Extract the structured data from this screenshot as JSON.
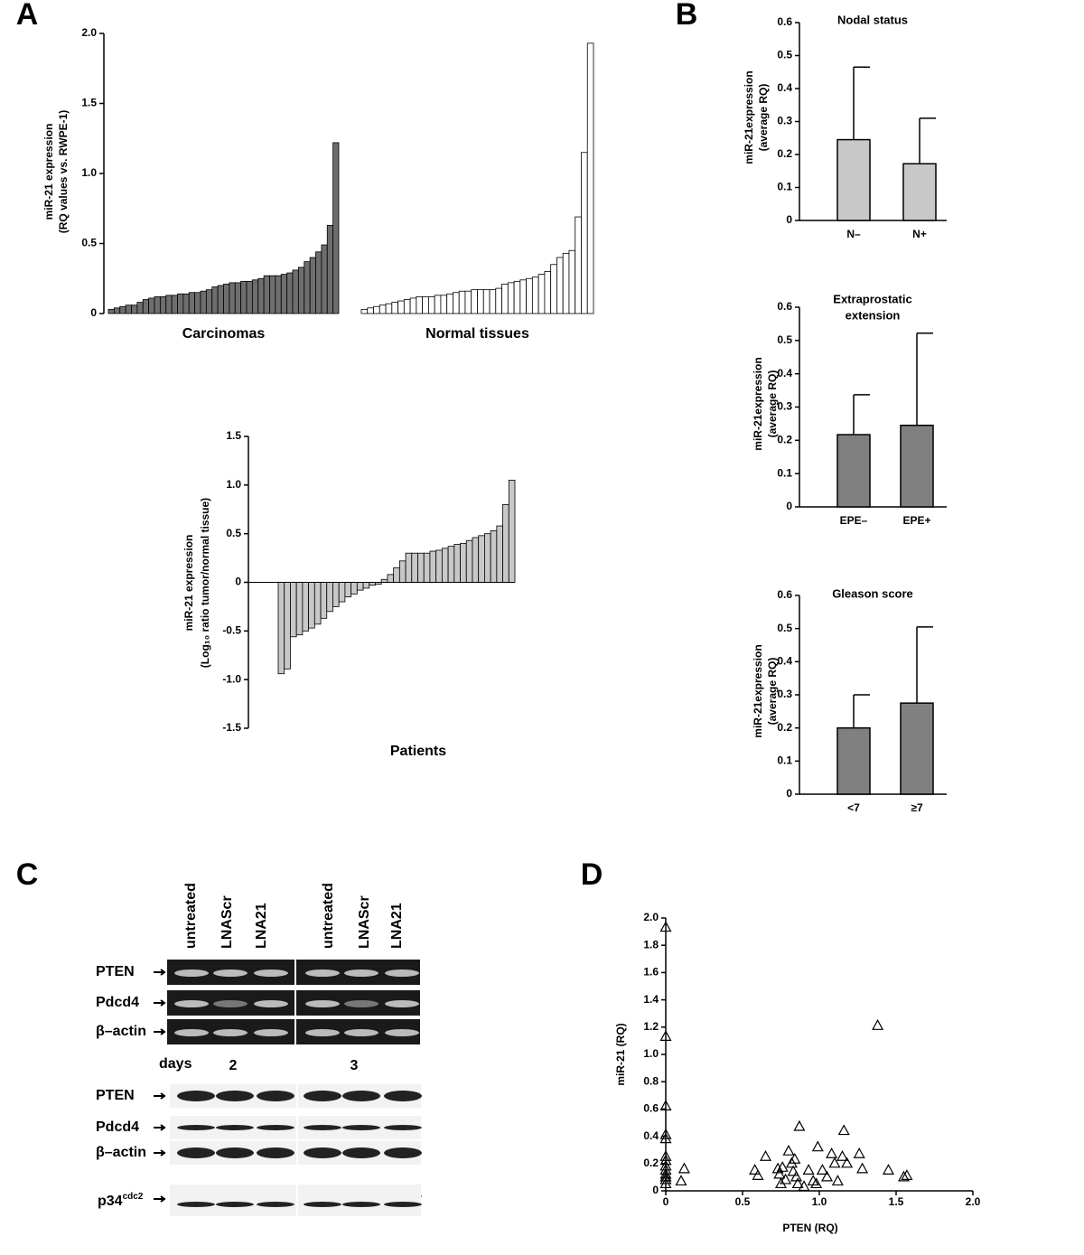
{
  "panel_labels": [
    "A",
    "B",
    "C",
    "D"
  ],
  "chart_data": [
    {
      "type": "bar",
      "ylabel": [
        "miR-21 expression",
        "(RQ values vs. RWPE-1)"
      ],
      "ylim": [
        0,
        2
      ],
      "yticks": [
        0,
        0.5,
        {
          "value": 1,
          "label": "1.0"
        },
        1.5,
        {
          "value": 2,
          "label": "2.0"
        }
      ],
      "series": [
        {
          "name": "Carcinomas",
          "color": "#6e6e6e",
          "values": [
            0.03,
            0.04,
            0.05,
            0.06,
            0.06,
            0.08,
            0.1,
            0.11,
            0.12,
            0.12,
            0.13,
            0.13,
            0.14,
            0.14,
            0.15,
            0.15,
            0.16,
            0.17,
            0.19,
            0.2,
            0.21,
            0.22,
            0.22,
            0.23,
            0.23,
            0.24,
            0.25,
            0.27,
            0.27,
            0.27,
            0.28,
            0.29,
            0.31,
            0.33,
            0.37,
            0.4,
            0.44,
            0.49,
            0.63,
            1.22
          ]
        },
        {
          "name": "Normal tissues",
          "color": "#ffffff",
          "values": [
            0.03,
            0.04,
            0.05,
            0.06,
            0.07,
            0.08,
            0.09,
            0.1,
            0.11,
            0.12,
            0.12,
            0.12,
            0.13,
            0.13,
            0.14,
            0.15,
            0.16,
            0.16,
            0.17,
            0.17,
            0.17,
            0.17,
            0.18,
            0.21,
            0.22,
            0.23,
            0.24,
            0.25,
            0.26,
            0.28,
            0.3,
            0.35,
            0.4,
            0.43,
            0.45,
            0.69,
            1.15,
            1.93
          ]
        }
      ]
    },
    {
      "type": "bar",
      "ylabel": [
        "miR-21 expression",
        "(Log₁₀ ratio tumor/normal tissue)"
      ],
      "xlabel": "Patients",
      "color": "#c8c8c8",
      "ylim": [
        -1.5,
        1.5
      ],
      "yticks": [
        -1.5,
        {
          "value": -1,
          "label": "-1.0"
        },
        -0.5,
        0,
        0.5,
        {
          "value": 1,
          "label": "1.0"
        },
        1.5
      ],
      "values": [
        -0.94,
        -0.89,
        -0.56,
        -0.54,
        -0.5,
        -0.47,
        -0.43,
        -0.37,
        -0.3,
        -0.25,
        -0.2,
        -0.15,
        -0.12,
        -0.08,
        -0.06,
        -0.03,
        -0.02,
        0.03,
        0.08,
        0.15,
        0.22,
        0.3,
        0.3,
        0.3,
        0.3,
        0.32,
        0.33,
        0.35,
        0.37,
        0.39,
        0.4,
        0.43,
        0.46,
        0.48,
        0.5,
        0.53,
        0.58,
        0.8,
        1.05
      ]
    },
    {
      "type": "bar",
      "title": [
        "Nodal status"
      ],
      "ylabel": [
        "miR-21expression",
        "(average RQ)"
      ],
      "color": "#c8c8c8",
      "categories": [
        "N–",
        "N+"
      ],
      "values": [
        0.245,
        0.172
      ],
      "errors": [
        0.22,
        0.138
      ],
      "ylim": [
        0,
        0.6
      ],
      "yticks": [
        0,
        0.1,
        0.2,
        0.3,
        0.4,
        0.5,
        0.6
      ]
    },
    {
      "type": "bar",
      "title": [
        "Extraprostatic",
        "extension"
      ],
      "ylabel": [
        "miR-21expression",
        "(average RQ)"
      ],
      "color": "#808080",
      "categories": [
        "EPE–",
        "EPE+"
      ],
      "values": [
        0.217,
        0.245
      ],
      "errors": [
        0.12,
        0.277
      ],
      "ylim": [
        0,
        0.6
      ],
      "yticks": [
        0,
        0.1,
        0.2,
        0.3,
        0.4,
        0.5,
        0.6
      ]
    },
    {
      "type": "bar",
      "title": [
        "Gleason score"
      ],
      "ylabel": [
        "miR-21expression",
        "(average RQ)"
      ],
      "color": "#808080",
      "categories": [
        "<7",
        "≥7"
      ],
      "values": [
        0.2,
        0.275
      ],
      "errors": [
        0.1,
        0.23
      ],
      "ylim": [
        0,
        0.6
      ],
      "yticks": [
        0,
        0.1,
        0.2,
        0.3,
        0.4,
        0.5,
        0.6
      ]
    },
    {
      "type": "scatter",
      "xlabel": "PTEN (RQ)",
      "ylabel": [
        "miR-21 (RQ)"
      ],
      "xlim": [
        0,
        2
      ],
      "xticks": [
        0,
        0.5,
        {
          "value": 1,
          "label": "1.0"
        },
        1.5,
        {
          "value": 2,
          "label": "2.0"
        }
      ],
      "ylim": [
        0,
        2
      ],
      "yticks": [
        0,
        0.2,
        0.4,
        0.6,
        0.8,
        {
          "value": 1,
          "label": "1.0"
        },
        1.2,
        1.4,
        1.6,
        1.8,
        {
          "value": 2,
          "label": "2.0"
        }
      ],
      "x": [
        0,
        0,
        0,
        0,
        0,
        0,
        0,
        0,
        0,
        0,
        0,
        0,
        0,
        0.12,
        0.1,
        0.58,
        0.6,
        0.65,
        0.73,
        0.74,
        0.75,
        0.76,
        0.78,
        0.8,
        0.82,
        0.83,
        0.84,
        0.85,
        0.86,
        0.87,
        0.9,
        0.93,
        0.96,
        0.98,
        0.99,
        1.02,
        1.05,
        1.08,
        1.1,
        1.12,
        1.15,
        1.16,
        1.18,
        1.26,
        1.28,
        1.38,
        1.45,
        1.55,
        1.57
      ],
      "y": [
        1.93,
        1.13,
        0.62,
        0.41,
        0.38,
        0.25,
        0.22,
        0.18,
        0.15,
        0.12,
        0.1,
        0.08,
        0.05,
        0.16,
        0.07,
        0.15,
        0.11,
        0.25,
        0.16,
        0.12,
        0.05,
        0.17,
        0.08,
        0.29,
        0.2,
        0.14,
        0.23,
        0.1,
        0.05,
        0.47,
        0.03,
        0.15,
        0.07,
        0.05,
        0.32,
        0.15,
        0.1,
        0.27,
        0.2,
        0.07,
        0.25,
        0.44,
        0.2,
        0.27,
        0.16,
        1.21,
        0.15,
        0.1,
        0.11
      ]
    }
  ],
  "blot": {
    "lanes": [
      "untreated",
      "LNAScr",
      "LNA21",
      "untreated",
      "LNAScr",
      "LNA21"
    ],
    "rt_rows": [
      "PTEN",
      "Pdcd4",
      "β–actin"
    ],
    "days_label": "days",
    "days": [
      "2",
      "3"
    ],
    "wb_rows": [
      "PTEN",
      "Pdcd4",
      "β–actin"
    ],
    "wb_last": {
      "text": "p34",
      "sup": "cdc2"
    }
  }
}
